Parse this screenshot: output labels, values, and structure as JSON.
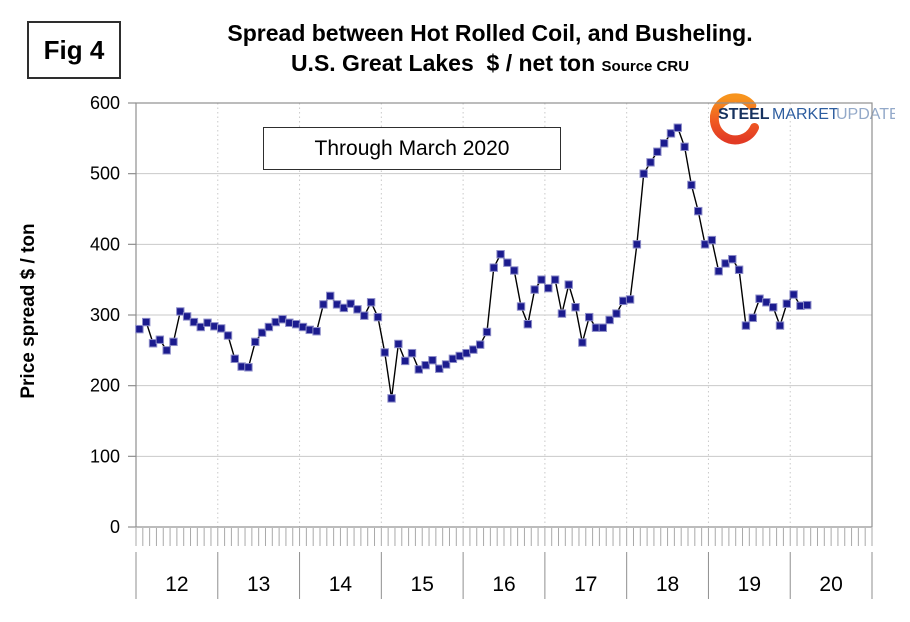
{
  "figure": {
    "label": "Fig 4"
  },
  "title": {
    "line1": "Spread between Hot Rolled Coil, and Busheling.",
    "line2": "U.S. Great Lakes  $ / net ton",
    "source": "Source CRU"
  },
  "annotation": {
    "through_note": "Through March 2020"
  },
  "logo": {
    "word1": "STEEL",
    "word2": "MARKET",
    "word3": "UPDATE"
  },
  "y_axis": {
    "title": "Price spread $ / ton",
    "ticks": [
      0,
      100,
      200,
      300,
      400,
      500,
      600
    ]
  },
  "x_axis": {
    "year_labels": [
      "12",
      "13",
      "14",
      "15",
      "16",
      "17",
      "18",
      "19",
      "20"
    ]
  },
  "chart_data": {
    "type": "line",
    "title": "Spread between Hot Rolled Coil, and Busheling. U.S. Great Lakes $ / net ton (Source CRU)",
    "xlabel": "",
    "ylabel": "Price spread $ / ton",
    "ylim": [
      0,
      600
    ],
    "y_tick_step": 100,
    "frequency": "monthly",
    "x_start": "2012-01",
    "x_end": "2020-03",
    "grid": {
      "horizontal": "solid",
      "vertical": "dotted-at-year-boundaries"
    },
    "legend": "none",
    "marker": "filled-square",
    "years": [
      "2012",
      "2013",
      "2014",
      "2015",
      "2016",
      "2017",
      "2018",
      "2019",
      "2020"
    ],
    "values_by_year": {
      "2012": [
        280,
        290,
        260,
        265,
        250,
        262,
        305,
        298,
        290,
        283,
        289,
        284
      ],
      "2013": [
        281,
        271,
        238,
        227,
        226,
        262,
        275,
        283,
        290,
        294,
        289,
        287
      ],
      "2014": [
        283,
        279,
        277,
        315,
        327,
        315,
        310,
        316,
        308,
        299,
        318,
        297
      ],
      "2015": [
        247,
        182,
        259,
        235,
        246,
        223,
        229,
        236,
        224,
        230,
        238,
        242
      ],
      "2016": [
        246,
        251,
        258,
        276,
        367,
        386,
        374,
        363,
        312,
        287,
        336,
        350
      ],
      "2017": [
        338,
        350,
        302,
        343,
        311,
        261,
        297,
        282,
        282,
        293,
        302,
        320
      ],
      "2018": [
        322,
        400,
        500,
        516,
        531,
        543,
        557,
        565,
        538,
        484,
        447,
        400
      ],
      "2019": [
        406,
        362,
        373,
        379,
        364,
        285,
        296,
        323,
        318,
        311,
        285,
        316
      ],
      "2020": [
        329,
        313,
        314
      ]
    },
    "colors": {
      "marker_fill": "#1b1b8e",
      "marker_edge": "#8c8cc8",
      "line": "#000000",
      "grid": "#c9c9c9",
      "axis": "#8f8f8f",
      "logo_orange": "#f7941e",
      "logo_red": "#e23b24",
      "logo_steel_blue": "#17325f",
      "logo_market_blue": "#2d5d9f",
      "logo_update_blue": "#93a9c9"
    }
  }
}
